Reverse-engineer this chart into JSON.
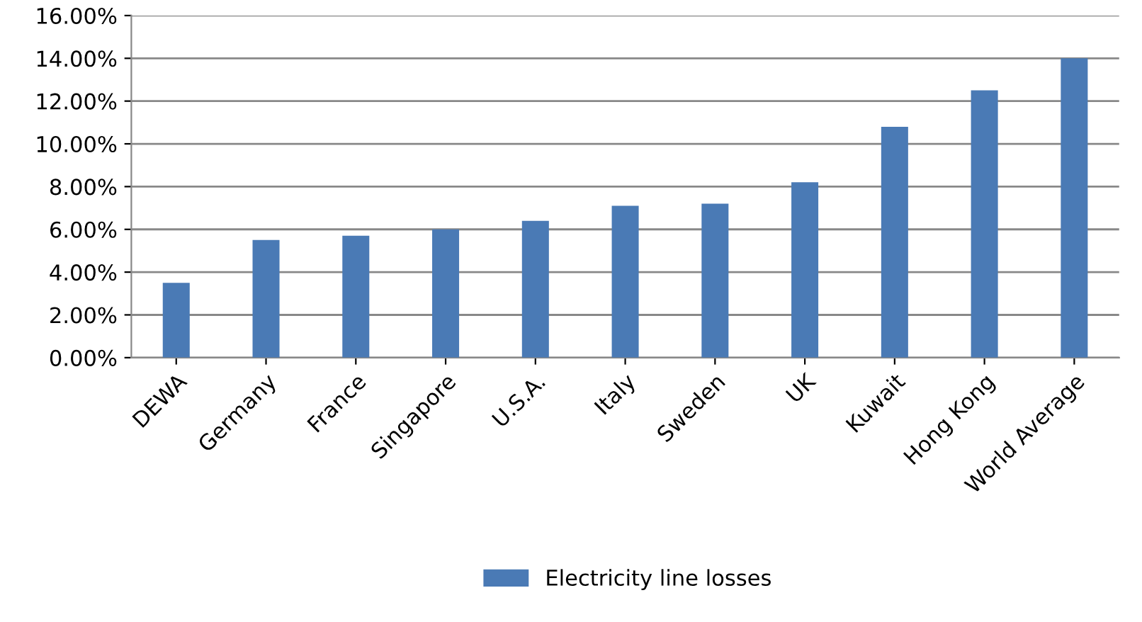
{
  "chart_data": {
    "type": "bar",
    "categories": [
      "DEWA",
      "Germany",
      "France",
      "Singapore",
      "U.S.A.",
      "Italy",
      "Sweden",
      "UK",
      "Kuwait",
      "Hong Kong",
      "World Average"
    ],
    "series": [
      {
        "name": "Electricity line losses",
        "color": "#4a7ab5",
        "values": [
          3.5,
          5.5,
          5.7,
          6.0,
          6.4,
          7.1,
          7.2,
          8.2,
          10.8,
          12.5,
          14.0
        ]
      }
    ],
    "ylim": [
      0,
      16
    ],
    "yticks": [
      {
        "value": 0,
        "label": "0.00%"
      },
      {
        "value": 2,
        "label": "2.00%"
      },
      {
        "value": 4,
        "label": "4.00%"
      },
      {
        "value": 6,
        "label": "6.00%"
      },
      {
        "value": 8,
        "label": "8.00%"
      },
      {
        "value": 10,
        "label": "10.00%"
      },
      {
        "value": 12,
        "label": "12.00%"
      },
      {
        "value": 14,
        "label": "14.00%"
      },
      {
        "value": 16,
        "label": "16.00%"
      }
    ],
    "grid": "y",
    "legend": "bottom"
  }
}
